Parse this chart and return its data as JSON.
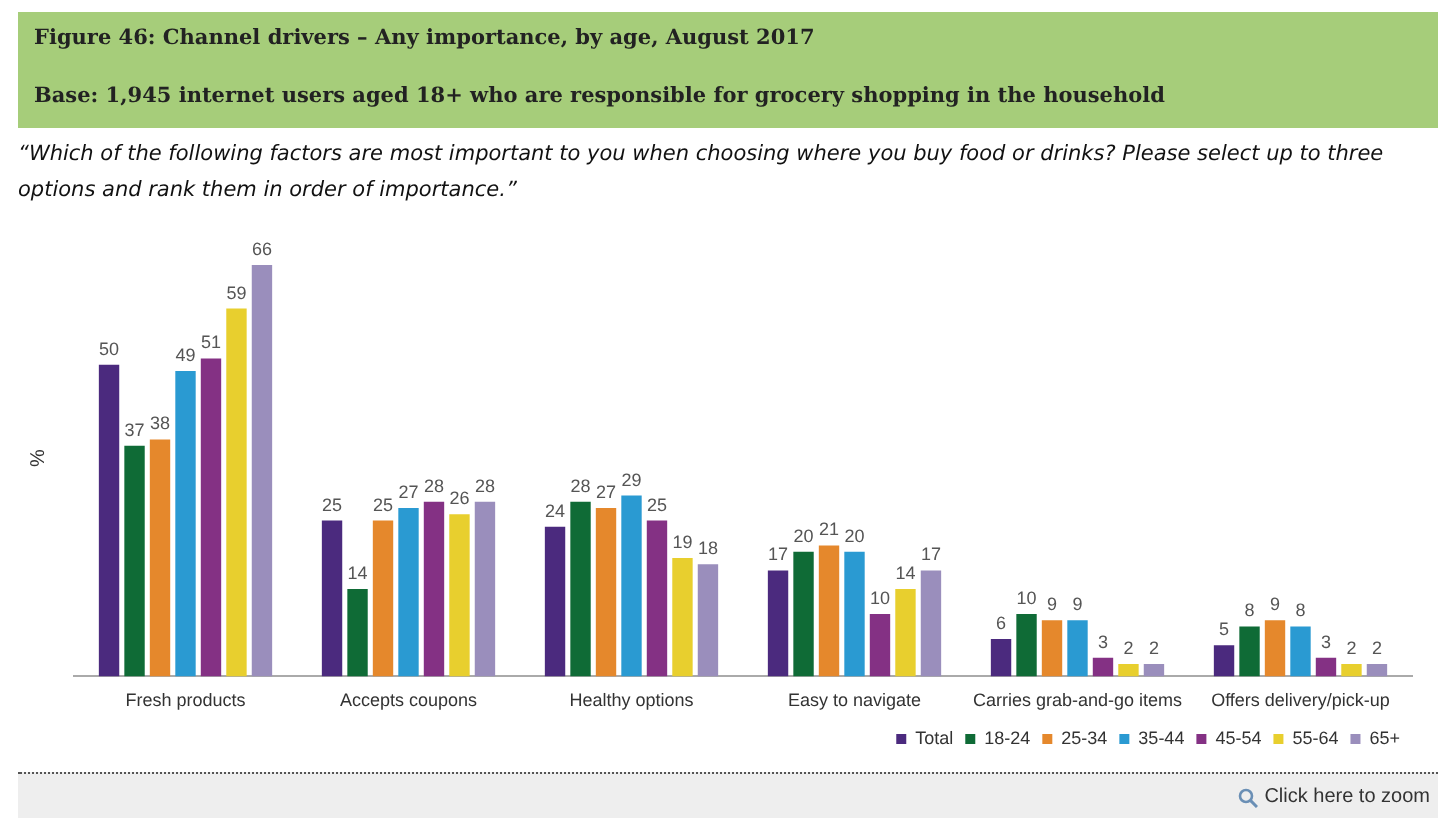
{
  "chart_data": {
    "type": "bar",
    "title": "Figure 46: Channel drivers – Any importance, by age, August 2017",
    "subtitle": "Base: 1,945 internet users aged 18+ who are responsible for grocery shopping in the household",
    "ylabel": "%",
    "annotations": [
      "“Which of the following factors are most important to you when choosing where you buy food or drinks? Please select up to three options and rank them in order of importance.”",
      "Click here to zoom"
    ],
    "categories": [
      "Fresh products",
      "Accepts coupons",
      "Healthy options",
      "Easy to navigate",
      "Carries grab-and-go items",
      "Offers delivery/pick-up"
    ],
    "series": [
      {
        "name": "Total",
        "color": "#4b2a7e",
        "values": [
          50,
          25,
          24,
          17,
          6,
          5
        ]
      },
      {
        "name": "18-24",
        "color": "#0f6b36",
        "values": [
          37,
          14,
          28,
          20,
          10,
          8
        ]
      },
      {
        "name": "25-34",
        "color": "#e5882c",
        "values": [
          38,
          25,
          27,
          21,
          9,
          9
        ]
      },
      {
        "name": "35-44",
        "color": "#2a9ad2",
        "values": [
          49,
          27,
          29,
          20,
          9,
          8
        ]
      },
      {
        "name": "45-54",
        "color": "#843184",
        "values": [
          51,
          28,
          25,
          10,
          3,
          3
        ]
      },
      {
        "name": "55-64",
        "color": "#e8cf2e",
        "values": [
          59,
          26,
          19,
          14,
          2,
          2
        ]
      },
      {
        "name": "65+",
        "color": "#9a8ebc",
        "values": [
          66,
          28,
          18,
          17,
          2,
          2
        ]
      }
    ],
    "data_labels": true,
    "grid": false,
    "legend": "bottom"
  }
}
